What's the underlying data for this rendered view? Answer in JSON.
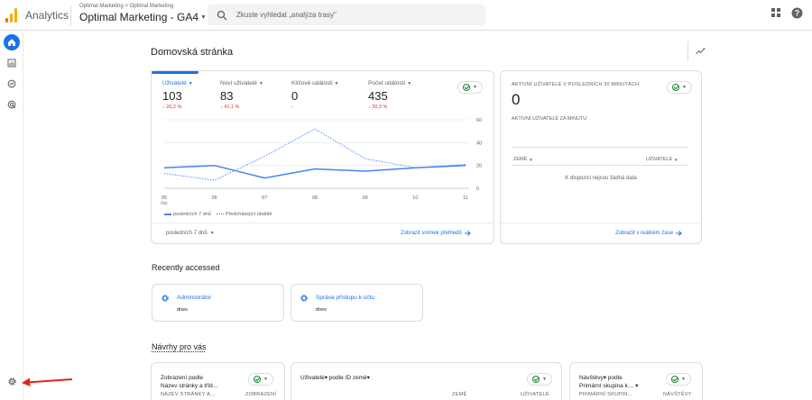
{
  "app": {
    "title": "Analytics",
    "breadcrumb": "Optimal Marketing > Optimal Marketing",
    "property": "Optimal Marketing - GA4"
  },
  "search": {
    "placeholder": "Zkuste vyhledat „analýza trasy\""
  },
  "colors": {
    "accent": "#1a73e8",
    "negative": "#d93025",
    "positive": "#188038",
    "line": "#4285f4"
  },
  "icons": [
    "apps-grid-icon",
    "help-icon",
    "home-icon",
    "reports-icon",
    "explore-icon",
    "advertising-icon",
    "settings-gear-icon",
    "insights-icon"
  ],
  "page": {
    "title": "Domovská stránka"
  },
  "overview": {
    "metrics": [
      {
        "label": "Uživatelé",
        "value": "103",
        "change": "↓ 26,2 %"
      },
      {
        "label": "Noví uživatelé",
        "value": "83",
        "change": "↓ 41,1 %"
      },
      {
        "label": "Klíčové události",
        "value": "0",
        "change": "-"
      },
      {
        "label": "Počet událostí",
        "value": "435",
        "change": "↓ 30,3 %"
      }
    ],
    "legend_current": "posledních 7 dnů",
    "legend_previous": "Předcházející období",
    "range": "posledních 7 dnů",
    "link": "Zobrazit snímek přehledů"
  },
  "chart_data": {
    "type": "line",
    "x": [
      "05 čvc",
      "06",
      "07",
      "08",
      "09",
      "10",
      "11"
    ],
    "x_tick_labels": [
      "05",
      "06",
      "07",
      "08",
      "09",
      "10",
      "11"
    ],
    "x_sublabel": "čvc",
    "ylim": [
      0,
      60
    ],
    "y_ticks": [
      "60",
      "40",
      "20",
      "0"
    ],
    "series": [
      {
        "name": "posledních 7 dnů",
        "values": [
          18,
          20,
          9,
          17,
          15,
          18,
          20
        ],
        "style": "solid"
      },
      {
        "name": "Předcházející období",
        "values": [
          13,
          7,
          28,
          52,
          26,
          18,
          21
        ],
        "style": "dotted"
      }
    ],
    "grid": true
  },
  "realtime": {
    "title": "AKTIVNÍ UŽIVATELÉ V POSLEDNÍCH 30 MINUTÁCH",
    "value": "0",
    "subtitle": "AKTIVNÍ UŽIVATELÉ ZA MINUTU",
    "col_country": "ZEMĚ",
    "col_users": "UŽIVATELÉ",
    "empty": "K dispozici nejsou žádná data",
    "link": "Zobrazit v reálném čase"
  },
  "recent": {
    "title": "Recently accessed",
    "items": [
      {
        "title": "Administrátor",
        "date": "dnes"
      },
      {
        "title": "Správa přístupu k účtu",
        "date": "dnes"
      }
    ]
  },
  "suggestions": {
    "title": "Návrhy pro vás",
    "cards": [
      {
        "line1": "Zobrazení podle",
        "line2": "Název stránky a tříd…",
        "col1": "NÁZEV STRÁNKY A…",
        "col2": "ZOBRAZENÍ"
      },
      {
        "line1": "Uživatelé▾ podle ID země▾",
        "line2": "",
        "col1": "ZEMĚ",
        "col2": "UŽIVATELÉ"
      },
      {
        "line1": "Návštěvy▾ podle",
        "line2": "Primární skupina k… ▾",
        "col1": "PRIMÁRNÍ SKUPIN…",
        "col2": "NÁVŠTĚVY"
      }
    ]
  }
}
